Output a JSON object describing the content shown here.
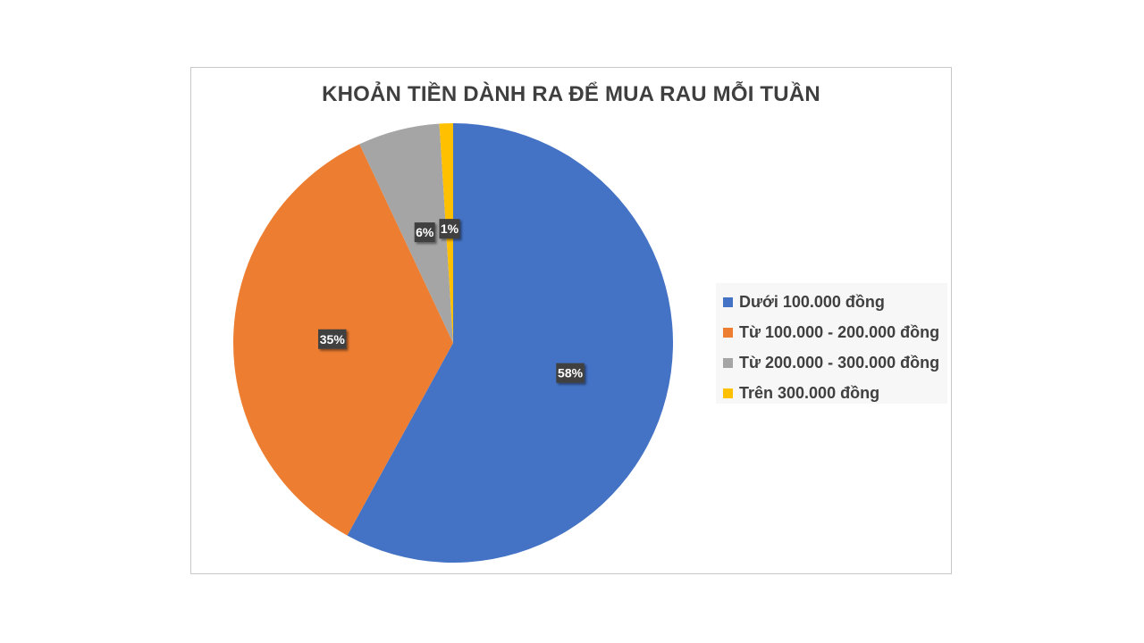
{
  "chart_data": {
    "type": "pie",
    "title": "KHOẢN TIỀN DÀNH RA ĐỂ MUA RAU MỖI TUẦN",
    "categories": [
      "Dưới 100.000 đồng",
      "Từ 100.000 - 200.000 đồng",
      "Từ 200.000 - 300.000 đồng",
      "Trên 300.000 đồng"
    ],
    "values": [
      58,
      35,
      6,
      1
    ],
    "data_labels": [
      "58%",
      "35%",
      "6%",
      "1%"
    ],
    "colors": [
      "#4472c4",
      "#ed7d31",
      "#a5a5a5",
      "#ffc000"
    ],
    "legend_position": "right"
  }
}
